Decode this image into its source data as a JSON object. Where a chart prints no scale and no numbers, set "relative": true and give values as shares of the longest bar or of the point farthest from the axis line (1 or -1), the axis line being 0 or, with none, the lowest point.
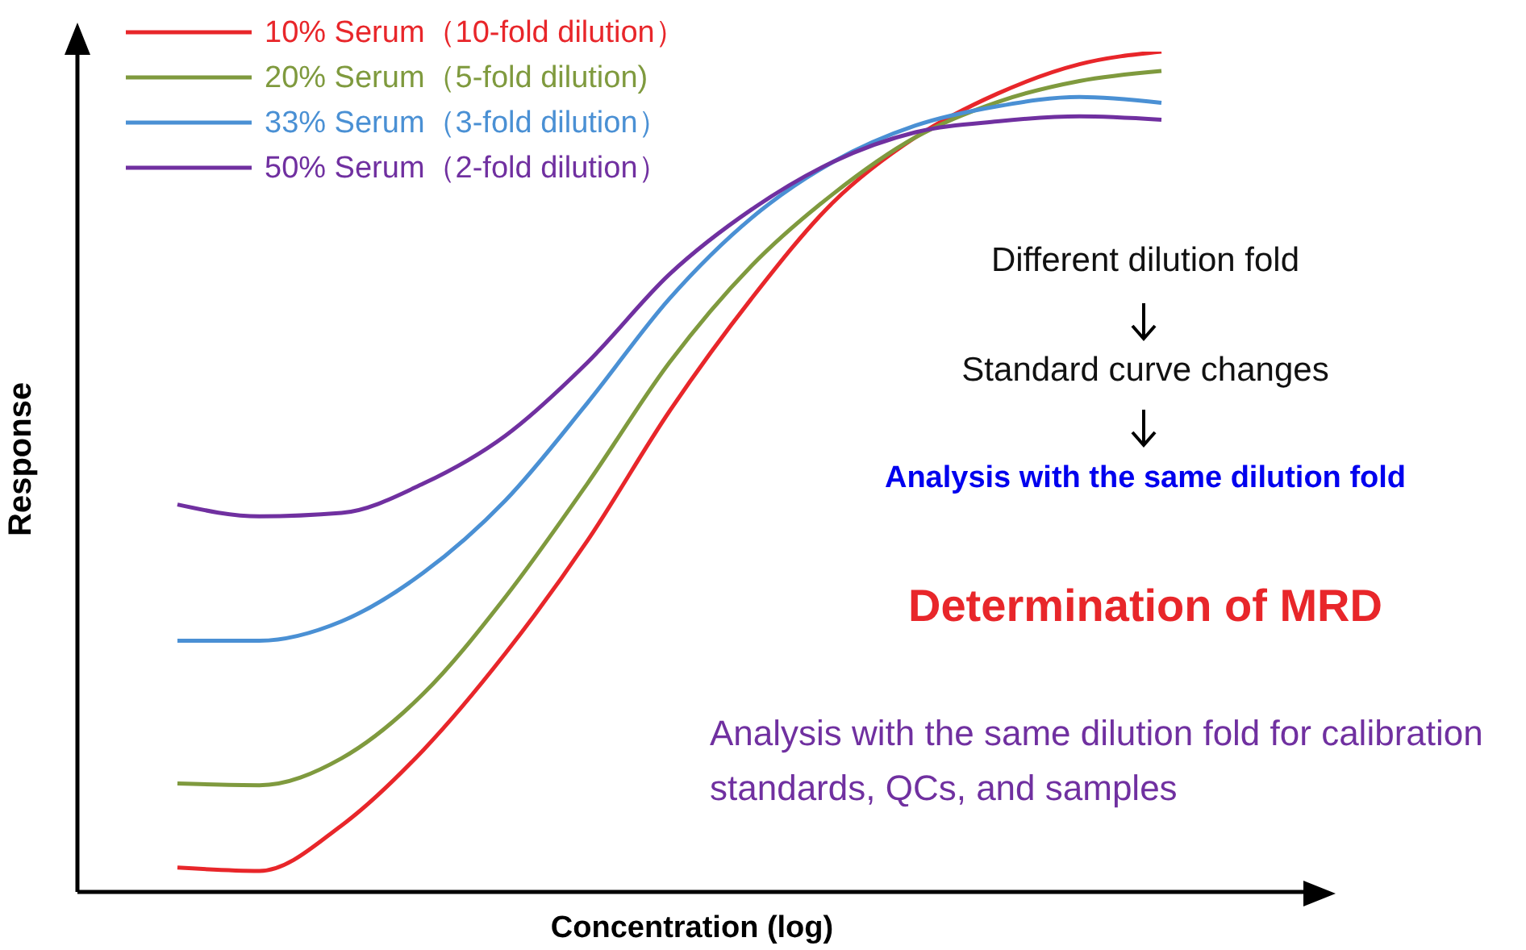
{
  "chart_data": {
    "type": "line",
    "relative": true,
    "xlabel": "Concentration (log)",
    "ylabel": "Response",
    "categories": [
      null,
      null,
      null,
      null,
      null,
      null,
      null,
      null,
      null,
      null,
      null,
      null,
      null
    ],
    "series": [
      {
        "name": "10% Serum（10-fold dilution）",
        "color": "#e8262a",
        "values": [
          0.029,
          0.025,
          0.079,
          0.169,
          0.284,
          0.418,
          0.572,
          0.706,
          0.821,
          0.898,
          0.95,
          0.985,
          1
        ]
      },
      {
        "name": "20% Serum（5-fold dilution)",
        "color": "#7f9a3e",
        "values": [
          0.129,
          0.127,
          0.159,
          0.236,
          0.351,
          0.486,
          0.63,
          0.745,
          0.831,
          0.898,
          0.94,
          0.965,
          0.977
        ]
      },
      {
        "name": "33% Serum（3-fold dilution）",
        "color": "#4a90d4",
        "values": [
          0.299,
          0.299,
          0.322,
          0.38,
          0.466,
          0.582,
          0.706,
          0.802,
          0.869,
          0.912,
          0.935,
          0.946,
          0.939
        ]
      },
      {
        "name": "50% Serum（2-fold dilution）",
        "color": "#7030a0",
        "values": [
          0.461,
          0.447,
          0.451,
          0.486,
          0.543,
          0.63,
          0.735,
          0.812,
          0.869,
          0.904,
          0.917,
          0.923,
          0.919
        ]
      }
    ],
    "legend": "top left",
    "grid": false,
    "marker": "none",
    "line_style": "solid",
    "annotations": [
      "Different dilution fold",
      "Standard curve changes",
      "Analysis with the same dilution fold",
      "Determination of MRD",
      "Analysis with the same dilution fold for calibration standards, QCs, and samples"
    ]
  }
}
